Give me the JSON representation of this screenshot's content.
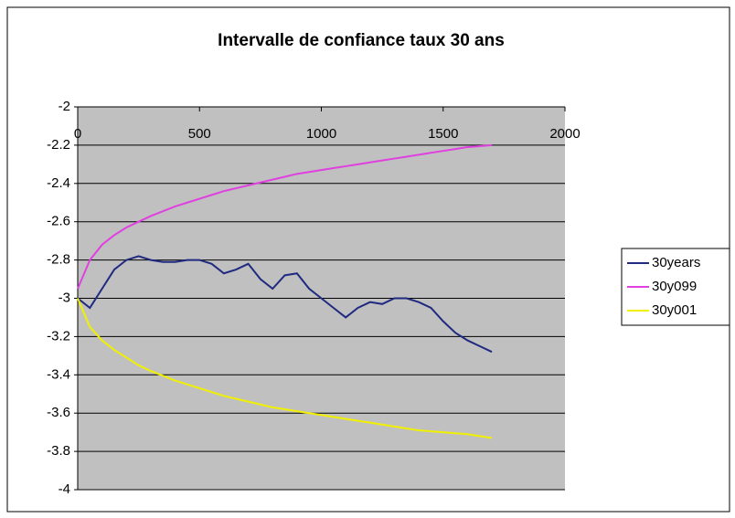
{
  "chart_data": {
    "type": "line",
    "title": "Intervalle de confiance taux 30 ans",
    "x": [
      0,
      50,
      100,
      150,
      200,
      250,
      300,
      350,
      400,
      450,
      500,
      550,
      600,
      650,
      700,
      750,
      800,
      850,
      900,
      950,
      1000,
      1050,
      1100,
      1150,
      1200,
      1250,
      1300,
      1350,
      1400,
      1450,
      1500,
      1550,
      1600,
      1650,
      1700
    ],
    "series": [
      {
        "name": "30years",
        "color": "#1f2a80",
        "values": [
          -3.0,
          -3.05,
          -2.95,
          -2.85,
          -2.8,
          -2.78,
          -2.8,
          -2.81,
          -2.81,
          -2.8,
          -2.8,
          -2.82,
          -2.87,
          -2.85,
          -2.82,
          -2.9,
          -2.95,
          -2.88,
          -2.87,
          -2.95,
          -3.0,
          -3.05,
          -3.1,
          -3.05,
          -3.02,
          -3.03,
          -3.0,
          -3.0,
          -3.02,
          -3.05,
          -3.12,
          -3.18,
          -3.22,
          -3.25,
          -3.28
        ]
      },
      {
        "name": "30y099",
        "color": "#e040e0",
        "values": [
          -2.95,
          -2.8,
          -2.72,
          -2.67,
          -2.63,
          -2.6,
          -2.57,
          -2.545,
          -2.52,
          -2.5,
          -2.48,
          -2.46,
          -2.44,
          -2.425,
          -2.41,
          -2.395,
          -2.38,
          -2.365,
          -2.35,
          -2.34,
          -2.33,
          -2.32,
          -2.31,
          -2.3,
          -2.29,
          -2.28,
          -2.27,
          -2.26,
          -2.25,
          -2.24,
          -2.23,
          -2.22,
          -2.21,
          -2.205,
          -2.2
        ]
      },
      {
        "name": "30y001",
        "color": "#f0f000",
        "values": [
          -3.0,
          -3.15,
          -3.22,
          -3.27,
          -3.31,
          -3.35,
          -3.38,
          -3.405,
          -3.43,
          -3.45,
          -3.47,
          -3.49,
          -3.51,
          -3.525,
          -3.54,
          -3.555,
          -3.57,
          -3.58,
          -3.59,
          -3.6,
          -3.61,
          -3.62,
          -3.63,
          -3.64,
          -3.65,
          -3.66,
          -3.67,
          -3.68,
          -3.69,
          -3.695,
          -3.7,
          -3.705,
          -3.71,
          -3.72,
          -3.73
        ]
      }
    ],
    "xlim": [
      0,
      2000
    ],
    "xticks": [
      0,
      500,
      1000,
      1500,
      2000
    ],
    "ylim": [
      -4,
      -2
    ],
    "yticks": [
      -2,
      -2.2,
      -2.4,
      -2.6,
      -2.8,
      -3,
      -3.2,
      -3.4,
      -3.6,
      -3.8,
      -4
    ],
    "grid": true,
    "legend": "right",
    "plot_background": "#c0c0c0"
  }
}
